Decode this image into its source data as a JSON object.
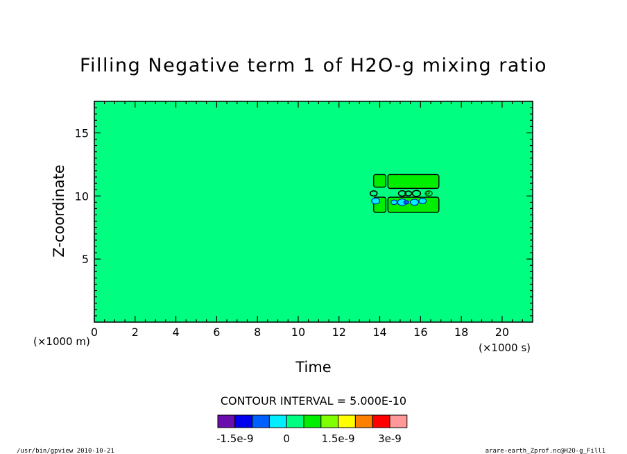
{
  "chart_data": {
    "type": "heatmap",
    "title": "Filling Negative term 1 of H2O-g mixing ratio",
    "xlabel": "Time",
    "ylabel": "Z-coordinate",
    "x_unit_label": "(×1000 s)",
    "y_unit_label": "(×1000 m)",
    "xlim": [
      0,
      21.5
    ],
    "ylim": [
      0,
      17.5
    ],
    "x_ticks": [
      0,
      2,
      4,
      6,
      8,
      10,
      12,
      14,
      16,
      18,
      20
    ],
    "x_tick_labels": [
      "0",
      "2",
      "4",
      "6",
      "8",
      "10",
      "12",
      "14",
      "16",
      "18",
      "20"
    ],
    "y_ticks": [
      5,
      10,
      15
    ],
    "y_tick_labels": [
      "5",
      "10",
      "15"
    ],
    "background_level": 0,
    "features": [
      {
        "kind": "region",
        "level": 5e-10,
        "x": [
          13.7,
          14.3
        ],
        "y": [
          10.7,
          11.7
        ]
      },
      {
        "kind": "region",
        "level": 5e-10,
        "x": [
          14.4,
          16.9
        ],
        "y": [
          10.6,
          11.7
        ]
      },
      {
        "kind": "region",
        "level": 5e-10,
        "x": [
          13.7,
          14.3
        ],
        "y": [
          8.7,
          9.9
        ]
      },
      {
        "kind": "region",
        "level": 5e-10,
        "x": [
          14.4,
          16.9
        ],
        "y": [
          8.7,
          9.9
        ]
      },
      {
        "kind": "blob",
        "level": -5e-10,
        "x": 13.8,
        "y": 9.6,
        "r": 0.2
      },
      {
        "kind": "blob",
        "level": -5e-10,
        "x": 14.7,
        "y": 9.5,
        "r": 0.15
      },
      {
        "kind": "blob",
        "level": -5e-10,
        "x": 15.1,
        "y": 9.5,
        "r": 0.22
      },
      {
        "kind": "blob",
        "level": -1e-09,
        "x": 15.3,
        "y": 9.5,
        "r": 0.12
      },
      {
        "kind": "blob",
        "level": -5e-10,
        "x": 15.7,
        "y": 9.5,
        "r": 0.2
      },
      {
        "kind": "blob",
        "level": -5e-10,
        "x": 16.1,
        "y": 9.6,
        "r": 0.18
      },
      {
        "kind": "ring",
        "level": -5e-10,
        "x": 13.7,
        "y": 10.2,
        "r": 0.17
      },
      {
        "kind": "ring",
        "level": -5e-10,
        "x": 15.1,
        "y": 10.2,
        "r": 0.18
      },
      {
        "kind": "ring",
        "level": -1e-09,
        "x": 15.4,
        "y": 10.2,
        "r": 0.16
      },
      {
        "kind": "ring",
        "level": -1e-09,
        "x": 15.8,
        "y": 10.2,
        "r": 0.2
      },
      {
        "kind": "ring",
        "level": 5e-10,
        "x": 16.4,
        "y": 10.2,
        "r": 0.17
      },
      {
        "kind": "ring",
        "level": 5e-10,
        "x": 16.35,
        "y": 10.25,
        "r": 0.08
      }
    ],
    "contour_interval_label": "CONTOUR INTERVAL = 5.000E-10",
    "colorbar": {
      "levels": [
        -1.5e-09,
        -1e-09,
        -5e-10,
        0,
        5e-10,
        1e-09,
        1.5e-09,
        2e-09,
        2.5e-09,
        3e-09
      ],
      "colors": [
        "#6a0dad",
        "#0000ee",
        "#0060ff",
        "#00eeff",
        "#00ff80",
        "#00ee00",
        "#80ff00",
        "#ffff00",
        "#ff8000",
        "#ff0000",
        "#ff9999"
      ],
      "tick_labels": [
        "-1.5e-9",
        "0",
        "1.5e-9",
        "3e-9"
      ]
    },
    "footer_left": "/usr/bin/gpview   2010-10-21",
    "footer_right": "arare-earth_Zprof.nc@H2O-g_Fill1"
  }
}
